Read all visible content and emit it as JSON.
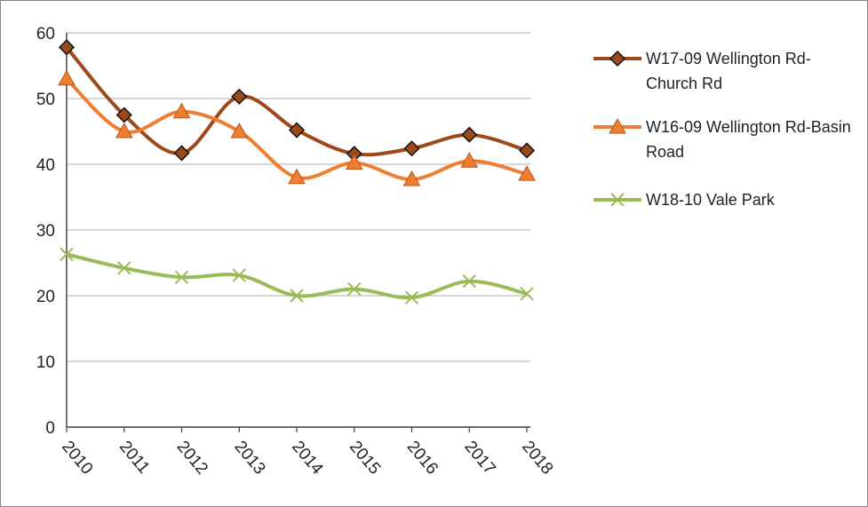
{
  "chart_data": {
    "type": "line",
    "categories": [
      "2010",
      "2011",
      "2012",
      "2013",
      "2014",
      "2015",
      "2016",
      "2017",
      "2018"
    ],
    "series": [
      {
        "name": "W17-09 Wellington Rd-Church Rd",
        "color": "#9c4a1a",
        "marker": "diamond",
        "values": [
          57.8,
          47.5,
          41.7,
          50.3,
          45.2,
          41.6,
          42.4,
          44.5,
          42.1
        ]
      },
      {
        "name": "W16-09 Wellington Rd-Basin Road",
        "color": "#ef7d32",
        "marker": "triangle",
        "values": [
          53.0,
          45.0,
          48.0,
          45.0,
          38.0,
          40.2,
          37.7,
          40.5,
          38.5
        ]
      },
      {
        "name": "W18-10 Vale Park",
        "color": "#9bbb59",
        "marker": "x",
        "values": [
          26.3,
          24.2,
          22.8,
          23.1,
          20.0,
          21.0,
          19.7,
          22.2,
          20.3
        ]
      }
    ],
    "ylim": [
      0,
      60
    ],
    "yticks": [
      0,
      10,
      20,
      30,
      40,
      50,
      60
    ],
    "grid": true,
    "smooth": true,
    "legend": "right"
  }
}
